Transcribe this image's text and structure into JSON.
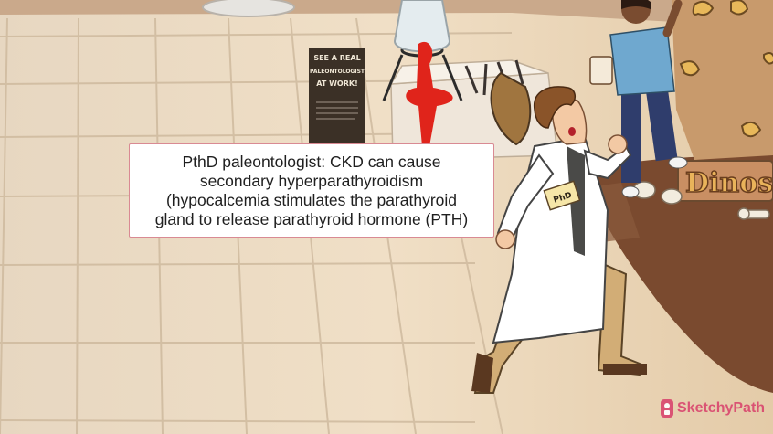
{
  "caption": {
    "lines": [
      "PthD paleontologist: CKD can cause",
      "secondary hyperparathyroidism",
      "(hypocalcemia stimulates the parathyroid",
      "gland to release parathyroid hormone (PTH)"
    ]
  },
  "sign": {
    "lines": [
      "SEE A REAL",
      "PALEONTOLOGIST",
      "AT WORK!"
    ]
  },
  "badge": {
    "text": "PhD"
  },
  "exhibit_sign": {
    "text": "Dinos"
  },
  "watermark": {
    "text": "SketchyPath"
  },
  "colors": {
    "floor": "#e9d7bd",
    "coat": "#ffffff",
    "blood": "#e0241b",
    "caption_border": "#d98a93",
    "brand": "#d9466e"
  }
}
